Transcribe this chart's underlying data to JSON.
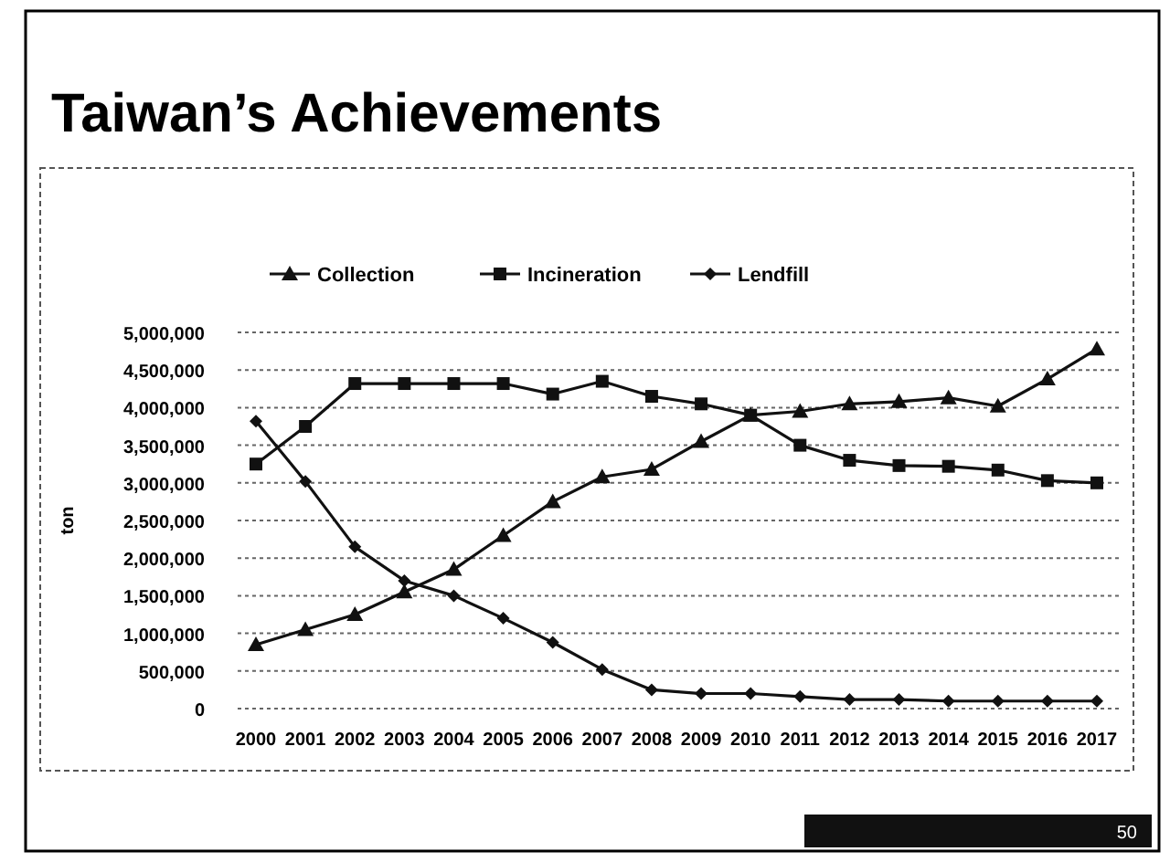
{
  "chart_data": {
    "type": "line",
    "title": "Taiwan’s Achievements",
    "ylabel": "ton",
    "categories": [
      "2000",
      "2001",
      "2002",
      "2003",
      "2004",
      "2005",
      "2006",
      "2007",
      "2008",
      "2009",
      "2010",
      "2011",
      "2012",
      "2013",
      "2014",
      "2015",
      "2016",
      "2017"
    ],
    "series": [
      {
        "name": "Collection",
        "color": "#111111",
        "marker": "triangle",
        "values": [
          850000,
          1050000,
          1250000,
          1550000,
          1850000,
          2300000,
          2750000,
          3080000,
          3180000,
          3550000,
          3900000,
          3950000,
          4050000,
          4080000,
          4130000,
          4020000,
          4380000,
          4780000
        ]
      },
      {
        "name": "Incineration",
        "color": "#111111",
        "marker": "square",
        "values": [
          3250000,
          3750000,
          4320000,
          4320000,
          4320000,
          4320000,
          4180000,
          4350000,
          4150000,
          4050000,
          3900000,
          3500000,
          3300000,
          3230000,
          3220000,
          3170000,
          3030000,
          3000000
        ]
      },
      {
        "name": "Lendfill",
        "color": "#111111",
        "marker": "diamond",
        "values": [
          3820000,
          3020000,
          2150000,
          1700000,
          1500000,
          1200000,
          880000,
          520000,
          250000,
          200000,
          200000,
          160000,
          120000,
          120000,
          100000,
          100000,
          100000,
          100000
        ]
      }
    ],
    "ylim": [
      0,
      5000000
    ],
    "yticks": [
      0,
      {
        "value": 500000,
        "label": "500,000"
      },
      {
        "value": 1000000,
        "label": "1,000,000"
      },
      {
        "value": 1500000,
        "label": "1,500,000"
      },
      {
        "value": 2000000,
        "label": "2,000,000"
      },
      {
        "value": 2500000,
        "label": "2,500,000"
      },
      {
        "value": 3000000,
        "label": "3,000,000"
      },
      {
        "value": 3500000,
        "label": "3,500,000"
      },
      {
        "value": 4000000,
        "label": "4,000,000"
      },
      {
        "value": 4500000,
        "label": "4,500,000"
      },
      {
        "value": 5000000,
        "label": "5,000,000"
      }
    ],
    "grid": "y",
    "legend": "top",
    "annotations": [
      "50"
    ]
  }
}
